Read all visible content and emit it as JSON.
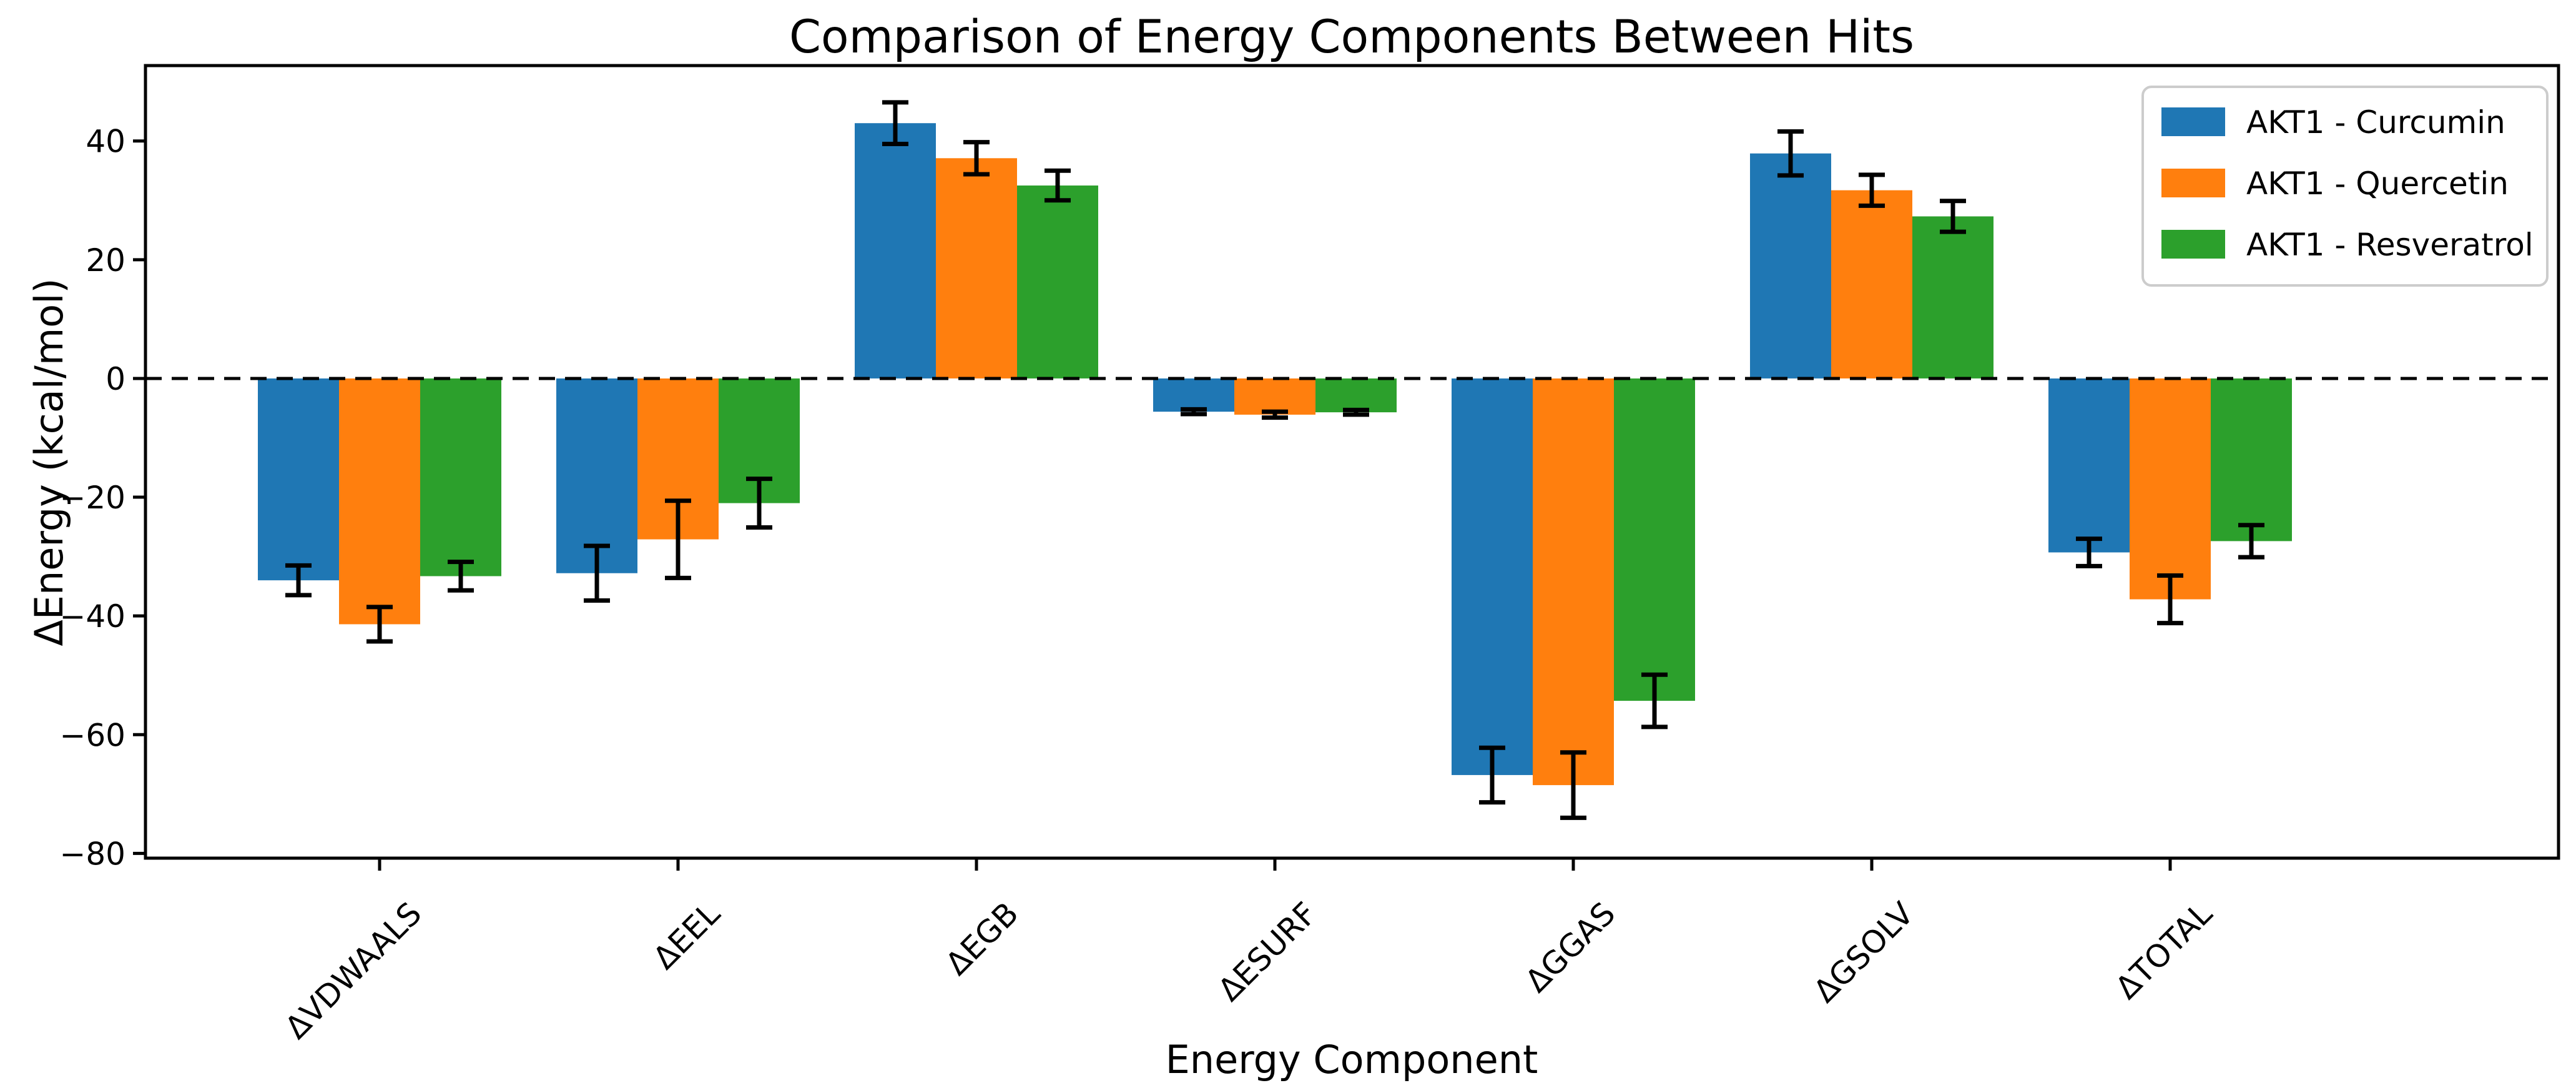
{
  "figure": {
    "background": "#ffffff"
  },
  "chart_data": {
    "type": "bar",
    "title": "Comparison of Energy Components Between Hits",
    "xlabel": "Energy Component",
    "ylabel": "ΔEnergy (kcal/mol)",
    "categories": [
      "ΔVDWAALS",
      "ΔEEL",
      "ΔEGB",
      "ΔESURF",
      "ΔGGAS",
      "ΔGSOLV",
      "ΔTOTAL"
    ],
    "series": [
      {
        "name": "AKT1 - Curcumin",
        "color": "#1f77b4",
        "values": [
          -34.0,
          -32.8,
          43.0,
          -5.6,
          -66.8,
          37.9,
          -29.3
        ],
        "errors": [
          2.5,
          4.6,
          3.5,
          0.4,
          4.6,
          3.7,
          2.3
        ]
      },
      {
        "name": "AKT1 - Quercetin",
        "color": "#ff7f0e",
        "values": [
          -41.4,
          -27.1,
          37.1,
          -6.1,
          -68.5,
          31.7,
          -37.2
        ],
        "errors": [
          2.9,
          6.5,
          2.7,
          0.5,
          5.5,
          2.6,
          4.0
        ]
      },
      {
        "name": "AKT1 - Resveratrol",
        "color": "#2ca02c",
        "values": [
          -33.3,
          -21.0,
          32.5,
          -5.7,
          -54.3,
          27.3,
          -27.4
        ],
        "errors": [
          2.4,
          4.1,
          2.5,
          0.4,
          4.4,
          2.6,
          2.7
        ]
      }
    ],
    "yticks": [
      40,
      20,
      0,
      -20,
      -40,
      -60,
      -80
    ],
    "ytick_labels": [
      "40",
      "20",
      "0",
      "−20",
      "−40",
      "−60",
      "−80"
    ],
    "ylim": [
      -80.8,
      52.7
    ],
    "grid": false,
    "error_bars": true,
    "zero_line": {
      "style": "dashed",
      "color": "#000000",
      "y": 0
    },
    "legend": {
      "position": "upper right",
      "entries": [
        "AKT1 - Curcumin",
        "AKT1 - Quercetin",
        "AKT1 - Resveratrol"
      ]
    }
  },
  "colors": {
    "series_blue": "#1f77b4",
    "series_orange": "#ff7f0e",
    "series_green": "#2ca02c",
    "axis": "#000000",
    "legend_border": "#cccccc",
    "background": "#ffffff"
  }
}
